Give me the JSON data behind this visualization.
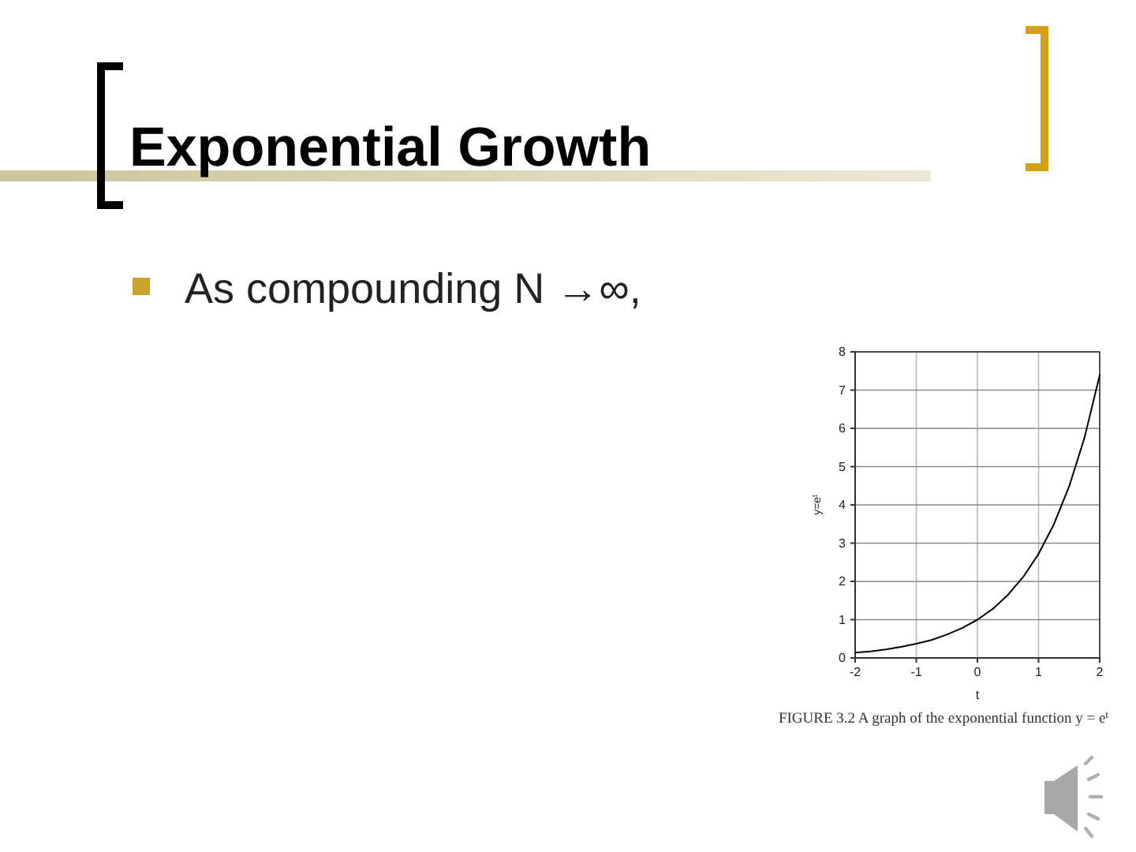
{
  "chart_data": {
    "type": "line",
    "title": "Exponential Growth",
    "subtitle": "As compounding N →∞,",
    "xlabel": "t",
    "ylabel": "y=e$^{t}$",
    "annotations": [
      "FIGURE 3.2 A graph of the exponential function y = e$^{t}$"
    ],
    "x": [
      -2,
      -1.75,
      -1.5,
      -1.25,
      -1,
      -0.75,
      -0.5,
      -0.25,
      0,
      0.25,
      0.5,
      0.75,
      1,
      1.25,
      1.5,
      1.75,
      2
    ],
    "values": [
      0.14,
      0.17,
      0.22,
      0.29,
      0.37,
      0.47,
      0.61,
      0.78,
      1.0,
      1.28,
      1.65,
      2.12,
      2.72,
      3.49,
      4.48,
      5.75,
      7.39
    ],
    "color": "#000000",
    "xlim": [
      -2,
      2
    ],
    "ylim": [
      0,
      8
    ],
    "xticks": [
      -2,
      -1,
      0,
      1,
      2
    ],
    "yticks": [
      0,
      1,
      2,
      3,
      4,
      5,
      6,
      7,
      8
    ],
    "grid": true
  }
}
